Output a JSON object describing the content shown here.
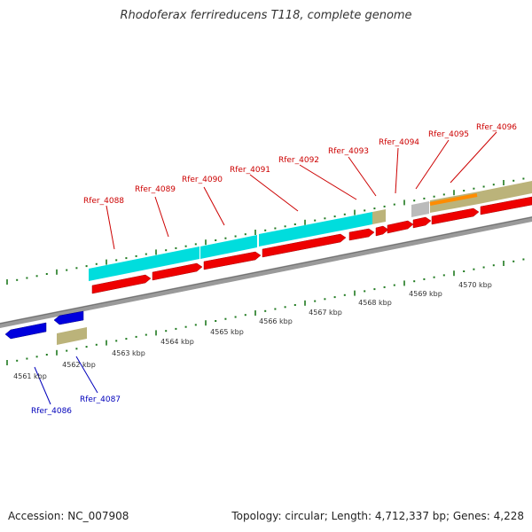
{
  "title": "Rhodoferax ferrireducens T118, complete genome",
  "accession": "Accession: NC_007908",
  "topology": "Topology: circular; Length: 4,712,337 bp; Genes: 4,228",
  "colors": {
    "forward_label": "#cc0000",
    "reverse_label": "#0000bb",
    "cds_forward": "#ee0000",
    "cds_reverse": "#0000dd",
    "gene_forward": "#00dddd",
    "gene_reverse": "#bbb37a",
    "backbone": "#8a8a8a",
    "tick": "#1f7a1f"
  },
  "scale_labels": [
    "4561 kbp",
    "4562 kbp",
    "4563 kbp",
    "4564 kbp",
    "4565 kbp",
    "4566 kbp",
    "4567 kbp",
    "4568 kbp",
    "4569 kbp",
    "4570 kbp"
  ],
  "forward_genes": [
    {
      "name": "Rfer_4088"
    },
    {
      "name": "Rfer_4089"
    },
    {
      "name": "Rfer_4090"
    },
    {
      "name": "Rfer_4091"
    },
    {
      "name": "Rfer_4092"
    },
    {
      "name": "Rfer_4093"
    },
    {
      "name": "Rfer_4094"
    },
    {
      "name": "Rfer_4095"
    },
    {
      "name": "Rfer_4096"
    }
  ],
  "reverse_genes": [
    {
      "name": "Rfer_4086"
    },
    {
      "name": "Rfer_4087"
    }
  ]
}
